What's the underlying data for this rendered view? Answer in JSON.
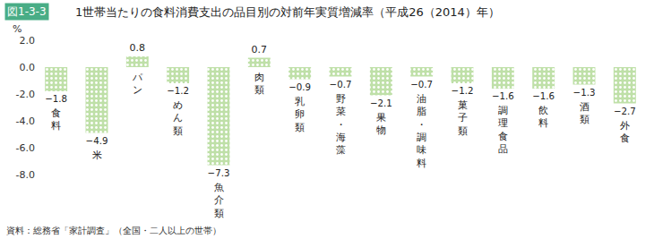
{
  "chart_data": {
    "type": "bar",
    "figure_number": "図1-3-3",
    "title": "1世帯当たりの食料消費支出の品目別の対前年実質増減率（平成26（2014）年）",
    "ylabel": "%",
    "source": "資料：総務省「家計調査」（全国・二人以上の世帯）",
    "categories": [
      "食料",
      "米",
      "パン",
      "めん類",
      "魚介類",
      "肉類",
      "乳卵類",
      "野菜・海藻",
      "果物",
      "油脂・調味料",
      "菓子類",
      "調理食品",
      "飲料",
      "酒類",
      "外食"
    ],
    "values": [
      -1.8,
      -4.9,
      0.8,
      -1.2,
      -7.3,
      0.7,
      -0.9,
      -0.7,
      -2.1,
      -0.7,
      -1.2,
      -1.6,
      -1.6,
      -1.3,
      -2.7
    ],
    "value_labels": [
      "−1.8",
      "−4.9",
      "0.8",
      "−1.2",
      "−7.3",
      "0.7",
      "−0.9",
      "−0.7",
      "−2.1",
      "−0.7",
      "−1.2",
      "−1.6",
      "−1.6",
      "−1.3",
      "−2.7"
    ],
    "data_labels": true,
    "color": "#bfe0a8",
    "ylim": [
      -8,
      2
    ],
    "yticks": [
      {
        "value": 2,
        "label": "2.0"
      },
      {
        "value": 0,
        "label": "0.0"
      },
      {
        "value": -2,
        "label": "-2.0"
      },
      {
        "value": -4,
        "label": "-4.0"
      },
      {
        "value": -6,
        "label": "-6.0"
      },
      {
        "value": -8,
        "label": "-8.0"
      }
    ],
    "grid": false,
    "tick_labels": "y"
  }
}
